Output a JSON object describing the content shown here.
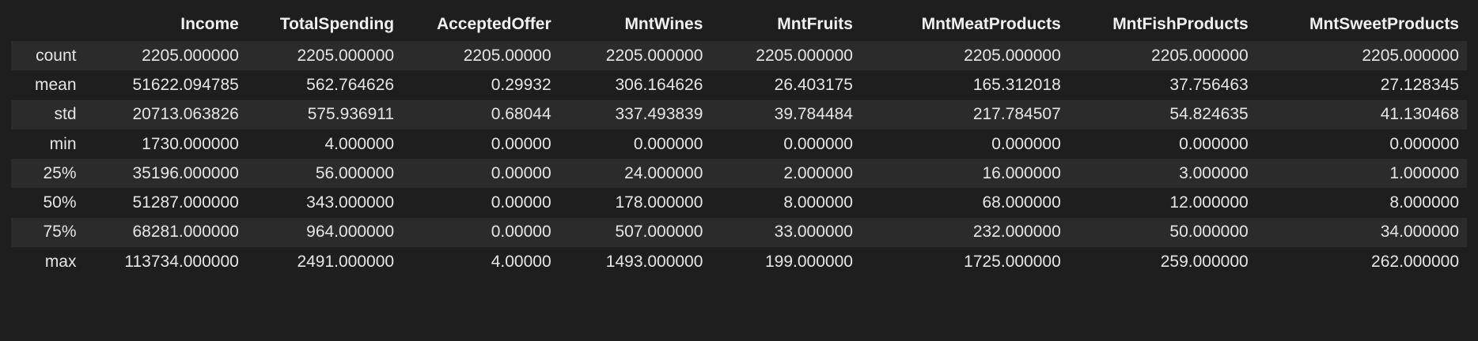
{
  "table": {
    "index_header": "",
    "columns": [
      "Income",
      "TotalSpending",
      "AcceptedOffer",
      "MntWines",
      "MntFruits",
      "MntMeatProducts",
      "MntFishProducts",
      "MntSweetProducts"
    ],
    "rows": [
      {
        "label": "count",
        "values": [
          "2205.000000",
          "2205.000000",
          "2205.00000",
          "2205.000000",
          "2205.000000",
          "2205.000000",
          "2205.000000",
          "2205.000000"
        ]
      },
      {
        "label": "mean",
        "values": [
          "51622.094785",
          "562.764626",
          "0.29932",
          "306.164626",
          "26.403175",
          "165.312018",
          "37.756463",
          "27.128345"
        ]
      },
      {
        "label": "std",
        "values": [
          "20713.063826",
          "575.936911",
          "0.68044",
          "337.493839",
          "39.784484",
          "217.784507",
          "54.824635",
          "41.130468"
        ]
      },
      {
        "label": "min",
        "values": [
          "1730.000000",
          "4.000000",
          "0.00000",
          "0.000000",
          "0.000000",
          "0.000000",
          "0.000000",
          "0.000000"
        ]
      },
      {
        "label": "25%",
        "values": [
          "35196.000000",
          "56.000000",
          "0.00000",
          "24.000000",
          "2.000000",
          "16.000000",
          "3.000000",
          "1.000000"
        ]
      },
      {
        "label": "50%",
        "values": [
          "51287.000000",
          "343.000000",
          "0.00000",
          "178.000000",
          "8.000000",
          "68.000000",
          "12.000000",
          "8.000000"
        ]
      },
      {
        "label": "75%",
        "values": [
          "68281.000000",
          "964.000000",
          "0.00000",
          "507.000000",
          "33.000000",
          "232.000000",
          "50.000000",
          "34.000000"
        ]
      },
      {
        "label": "max",
        "values": [
          "113734.000000",
          "2491.000000",
          "4.00000",
          "1493.000000",
          "199.000000",
          "1725.000000",
          "259.000000",
          "262.000000"
        ]
      }
    ]
  },
  "colors": {
    "background": "#1e1e1e",
    "row_stripe": "#2b2b2b",
    "text": "#e6e6e6"
  }
}
